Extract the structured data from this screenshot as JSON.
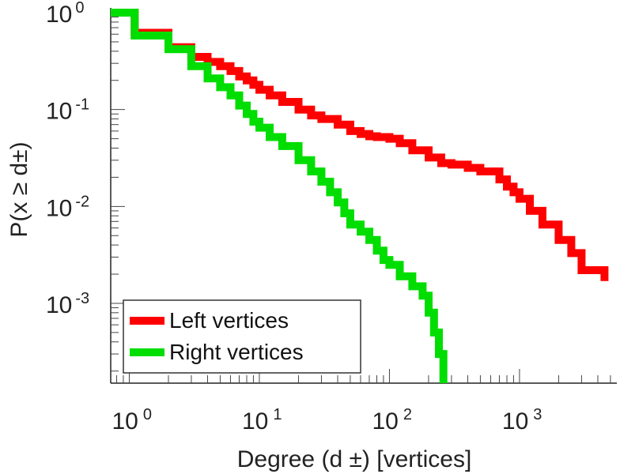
{
  "chart_data": {
    "type": "line",
    "title": "",
    "xlabel": "Degree (d  ±) [vertices]",
    "ylabel": "P(x ≥ d±)",
    "xscale": "log",
    "yscale": "log",
    "xlim": [
      0.72,
      5600
    ],
    "ylim": [
      0.00015,
      1.12
    ],
    "grid": false,
    "legend_position": "bottom-left",
    "x_ticks": [
      {
        "base": "10",
        "exp": "0",
        "value": 1
      },
      {
        "base": "10",
        "exp": "1",
        "value": 10
      },
      {
        "base": "10",
        "exp": "2",
        "value": 100
      },
      {
        "base": "10",
        "exp": "3",
        "value": 1000
      }
    ],
    "y_ticks": [
      {
        "base": "10",
        "exp": "0",
        "value": 1
      },
      {
        "base": "10",
        "exp": "-1",
        "value": 0.1
      },
      {
        "base": "10",
        "exp": "-2",
        "value": 0.01
      },
      {
        "base": "10",
        "exp": "-3",
        "value": 0.001
      }
    ],
    "series": [
      {
        "name": "Left vertices",
        "color": "#ff0000",
        "x": [
          0.72,
          1.1,
          2.0,
          3.0,
          4.0,
          5.0,
          6.0,
          7.0,
          8.0,
          9.0,
          10,
          12,
          15,
          20,
          25,
          30,
          40,
          50,
          60,
          70,
          80,
          100,
          120,
          150,
          200,
          250,
          300,
          400,
          500,
          700,
          800,
          900,
          1000,
          1200,
          1500,
          2000,
          2500,
          3000,
          4500
        ],
        "y": [
          1.0,
          0.62,
          0.44,
          0.35,
          0.31,
          0.28,
          0.25,
          0.22,
          0.2,
          0.18,
          0.16,
          0.14,
          0.12,
          0.1,
          0.087,
          0.08,
          0.07,
          0.06,
          0.056,
          0.053,
          0.052,
          0.05,
          0.045,
          0.038,
          0.032,
          0.028,
          0.027,
          0.025,
          0.023,
          0.019,
          0.016,
          0.014,
          0.012,
          0.009,
          0.0065,
          0.0045,
          0.0033,
          0.0022,
          0.0017
        ]
      },
      {
        "name": "Right vertices",
        "color": "#00dd00",
        "x": [
          0.72,
          1.1,
          2.0,
          3.0,
          4.0,
          5.0,
          6.0,
          7.0,
          8.0,
          9.0,
          10,
          12,
          15,
          20,
          25,
          30,
          35,
          40,
          45,
          50,
          60,
          70,
          80,
          90,
          100,
          120,
          150,
          180,
          200,
          220,
          240,
          260
        ],
        "y": [
          1.0,
          0.58,
          0.42,
          0.28,
          0.21,
          0.17,
          0.14,
          0.11,
          0.09,
          0.075,
          0.065,
          0.052,
          0.042,
          0.03,
          0.023,
          0.018,
          0.014,
          0.011,
          0.0085,
          0.0065,
          0.0055,
          0.0045,
          0.0035,
          0.0028,
          0.0025,
          0.0019,
          0.0015,
          0.0012,
          0.0008,
          0.0005,
          0.0003,
          0.00015
        ]
      }
    ]
  }
}
